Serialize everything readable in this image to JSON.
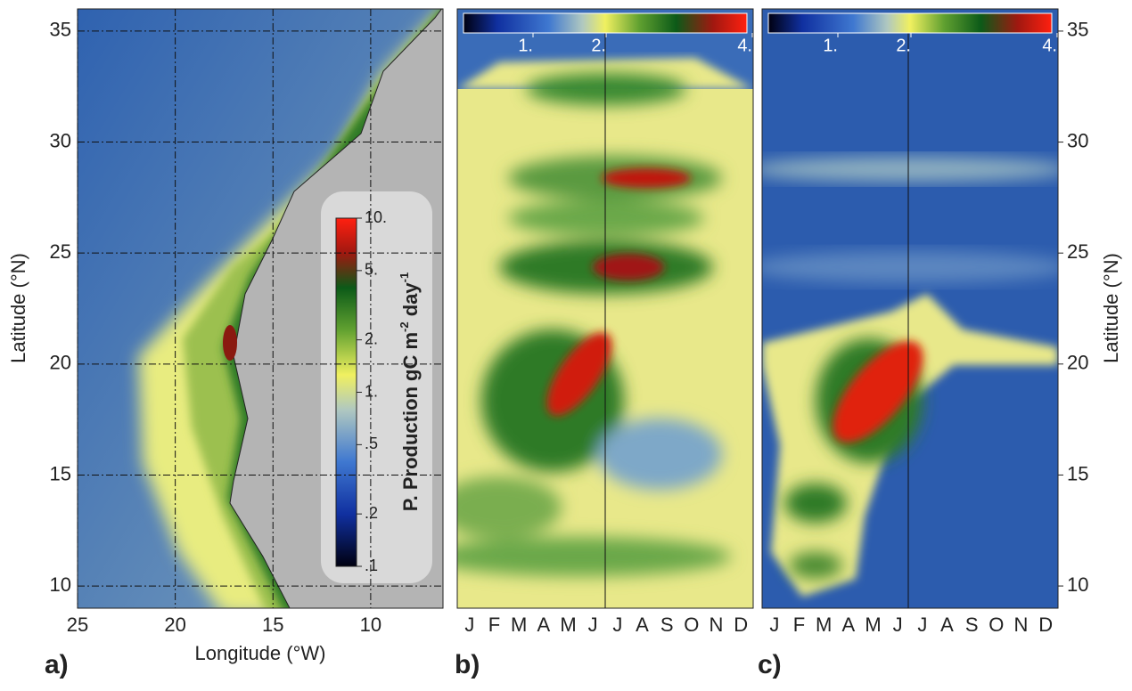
{
  "chart_data": [
    {
      "type": "map",
      "panel": "a)",
      "xlabel": "Longitude (°W)",
      "ylabel": "Latitude (°N)",
      "xlim": [
        25,
        6.3
      ],
      "xticks": [
        25,
        20,
        15,
        10
      ],
      "ylim": [
        9,
        36
      ],
      "yticks": [
        10,
        15,
        20,
        25,
        30,
        35
      ],
      "grid": true,
      "colorbar": {
        "label_parts": [
          "P. Production gC  m",
          "-2",
          " day",
          "-1"
        ],
        "log": true,
        "lim": [
          0.1,
          10
        ],
        "ticks": [
          {
            "value": 10,
            "label": "10."
          },
          {
            "value": 5,
            "label": "5."
          },
          {
            "value": 2,
            "label": "2."
          },
          {
            "value": 1,
            "label": "1."
          },
          {
            "value": 0.5,
            "label": ".5"
          },
          {
            "value": 0.2,
            "label": ".2"
          },
          {
            "value": 0.1,
            "label": ".1"
          }
        ]
      }
    },
    {
      "type": "heatmap",
      "panel": "b)",
      "categories": [
        "J",
        "F",
        "M",
        "A",
        "M",
        "J",
        "J",
        "A",
        "S",
        "O",
        "N",
        "D"
      ],
      "ylim": [
        9,
        36
      ],
      "colorbar": {
        "lim": [
          0,
          4
        ],
        "ticks": [
          {
            "value": 1,
            "label": "1."
          },
          {
            "value": 2,
            "label": "2."
          },
          {
            "value": 4,
            "label": "4."
          }
        ]
      }
    },
    {
      "type": "heatmap",
      "panel": "c)",
      "ylabel": "Latitude (°N)",
      "categories": [
        "J",
        "F",
        "M",
        "A",
        "M",
        "J",
        "J",
        "A",
        "S",
        "O",
        "N",
        "D"
      ],
      "ylim": [
        9,
        36
      ],
      "yticks": [
        10,
        15,
        20,
        25,
        30,
        35
      ],
      "colorbar": {
        "lim": [
          0,
          4
        ],
        "ticks": [
          {
            "value": 1,
            "label": "1."
          },
          {
            "value": 2,
            "label": "2."
          },
          {
            "value": 4,
            "label": "4."
          }
        ]
      }
    }
  ]
}
